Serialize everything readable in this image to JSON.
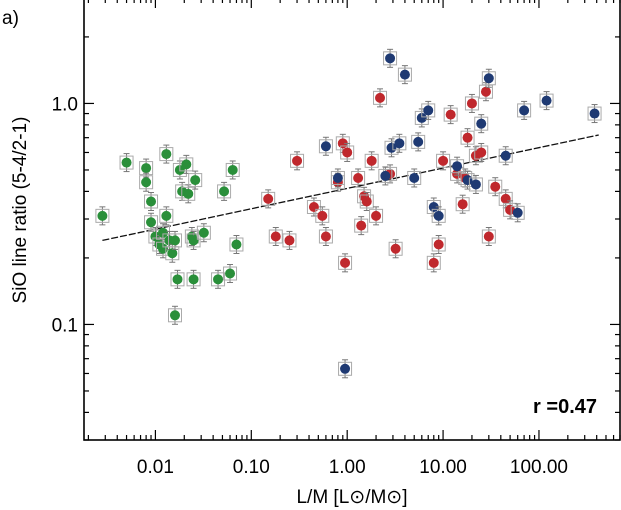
{
  "chart_data": {
    "type": "scatter",
    "panel_label": "a)",
    "xlabel": "L/M [L⊙/M⊙]",
    "ylabel": "SiO line ratio (5-4/2-1)",
    "x_scale": "log",
    "y_scale": "log",
    "xlim": [
      0.0018,
      700
    ],
    "ylim": [
      0.03,
      3.0
    ],
    "x_ticks": [
      {
        "value": 0.01,
        "label": "0.01"
      },
      {
        "value": 0.1,
        "label": "0.10"
      },
      {
        "value": 1,
        "label": "1.00"
      },
      {
        "value": 10,
        "label": "10.00"
      },
      {
        "value": 100,
        "label": "100.00"
      }
    ],
    "y_ticks": [
      {
        "value": 0.1,
        "label": "0.1"
      },
      {
        "value": 1.0,
        "label": "1.0"
      }
    ],
    "annotation": "r =0.47",
    "colors": {
      "green": "#2a8f3a",
      "red": "#c0282d",
      "blue": "#1f3a73"
    },
    "fit_line": {
      "x": [
        0.0028,
        420
      ],
      "y": [
        0.24,
        0.72
      ]
    },
    "series": [
      {
        "color": "green",
        "points": [
          [
            0.0028,
            0.31
          ],
          [
            0.005,
            0.54
          ],
          [
            0.008,
            0.51
          ],
          [
            0.008,
            0.44
          ],
          [
            0.009,
            0.36
          ],
          [
            0.009,
            0.29
          ],
          [
            0.01,
            0.25
          ],
          [
            0.011,
            0.23
          ],
          [
            0.012,
            0.26
          ],
          [
            0.012,
            0.22
          ],
          [
            0.013,
            0.31
          ],
          [
            0.013,
            0.59
          ],
          [
            0.014,
            0.24
          ],
          [
            0.015,
            0.21
          ],
          [
            0.016,
            0.24
          ],
          [
            0.016,
            0.11
          ],
          [
            0.017,
            0.16
          ],
          [
            0.018,
            0.5
          ],
          [
            0.019,
            0.4
          ],
          [
            0.021,
            0.53
          ],
          [
            0.022,
            0.39
          ],
          [
            0.024,
            0.25
          ],
          [
            0.025,
            0.24
          ],
          [
            0.025,
            0.16
          ],
          [
            0.026,
            0.45
          ],
          [
            0.032,
            0.26
          ],
          [
            0.045,
            0.16
          ],
          [
            0.052,
            0.4
          ],
          [
            0.06,
            0.17
          ],
          [
            0.064,
            0.5
          ],
          [
            0.07,
            0.23
          ]
        ]
      },
      {
        "color": "red",
        "points": [
          [
            0.15,
            0.37
          ],
          [
            0.18,
            0.25
          ],
          [
            0.25,
            0.24
          ],
          [
            0.3,
            0.55
          ],
          [
            0.45,
            0.34
          ],
          [
            0.55,
            0.31
          ],
          [
            0.6,
            0.25
          ],
          [
            0.8,
            0.44
          ],
          [
            0.9,
            0.66
          ],
          [
            0.95,
            0.19
          ],
          [
            1.0,
            0.6
          ],
          [
            1.3,
            0.46
          ],
          [
            1.4,
            0.28
          ],
          [
            1.5,
            0.38
          ],
          [
            1.6,
            0.36
          ],
          [
            1.8,
            0.55
          ],
          [
            2.0,
            0.31
          ],
          [
            2.2,
            1.06
          ],
          [
            2.8,
            0.48
          ],
          [
            3.2,
            0.22
          ],
          [
            8.0,
            0.19
          ],
          [
            9.0,
            0.23
          ],
          [
            10.0,
            0.55
          ],
          [
            12.0,
            0.89
          ],
          [
            14.0,
            0.48
          ],
          [
            16.0,
            0.35
          ],
          [
            17.0,
            0.46
          ],
          [
            18.0,
            0.7
          ],
          [
            20.0,
            1.0
          ],
          [
            22.0,
            0.58
          ],
          [
            25.0,
            0.6
          ],
          [
            28.0,
            1.13
          ],
          [
            30.0,
            0.25
          ],
          [
            35.0,
            0.42
          ],
          [
            45.0,
            0.37
          ],
          [
            50.0,
            0.33
          ]
        ]
      },
      {
        "color": "blue",
        "points": [
          [
            0.6,
            0.64
          ],
          [
            0.8,
            0.46
          ],
          [
            0.95,
            0.063
          ],
          [
            2.5,
            0.47
          ],
          [
            2.8,
            1.6
          ],
          [
            2.9,
            0.63
          ],
          [
            3.5,
            0.66
          ],
          [
            4.0,
            1.35
          ],
          [
            5.0,
            0.46
          ],
          [
            5.5,
            0.67
          ],
          [
            6.0,
            0.86
          ],
          [
            7.0,
            0.93
          ],
          [
            8.0,
            0.34
          ],
          [
            9.0,
            0.31
          ],
          [
            14.0,
            0.52
          ],
          [
            18.0,
            0.45
          ],
          [
            22.0,
            0.43
          ],
          [
            25.0,
            0.81
          ],
          [
            30.0,
            1.3
          ],
          [
            45.0,
            0.58
          ],
          [
            60.0,
            0.32
          ],
          [
            70.0,
            0.93
          ],
          [
            120.0,
            1.03
          ],
          [
            380.0,
            0.9
          ]
        ]
      }
    ]
  }
}
